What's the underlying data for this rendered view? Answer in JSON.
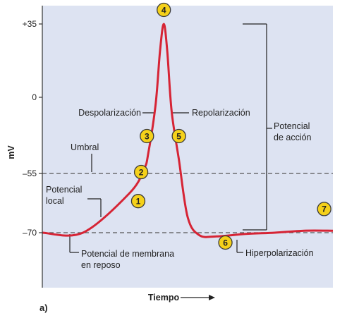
{
  "colors": {
    "plot_bg": "#dde3f2",
    "curve": "#d62435",
    "badge_fill": "#f5d11a",
    "badge_stroke": "#3a3a3a",
    "dashed": "#555555",
    "text": "#222222"
  },
  "chart_data": {
    "type": "line",
    "title": "",
    "panel_label": "a)",
    "ylabel": "mV",
    "xlabel": "Tiempo",
    "xlim": [
      0,
      100
    ],
    "ylim": [
      -90,
      40
    ],
    "y_ticks": [
      {
        "value": 35,
        "label": "+35"
      },
      {
        "value": 0,
        "label": "0"
      },
      {
        "value": -55,
        "label": "–55"
      },
      {
        "value": -70,
        "label": "–70"
      }
    ],
    "threshold_lines": [
      {
        "name": "umbral",
        "y": -55
      },
      {
        "name": "reposo",
        "y": -70
      }
    ],
    "series": [
      {
        "x": [
          0,
          14,
          30,
          35,
          36.5,
          39,
          40.5,
          41.8,
          43,
          44.5,
          47,
          50,
          54,
          60,
          70,
          80,
          90,
          100
        ],
        "y": [
          -70,
          -70,
          -60,
          -52,
          -40,
          -5,
          22,
          35,
          22,
          -10,
          -45,
          -66,
          -71,
          -71.5,
          -70.5,
          -70,
          -69.5,
          -69.5
        ]
      }
    ],
    "annotations": [
      {
        "text": "Despolarización",
        "x": 38,
        "y": -7
      },
      {
        "text": "Repolarización",
        "x": 45,
        "y": -7
      },
      {
        "text": "Umbral",
        "x": 15,
        "y": -55
      },
      {
        "text": "Potencial local",
        "x": 20,
        "y": -62
      },
      {
        "text": "Potencial de membrana en reposo",
        "x": 9,
        "y": -70
      },
      {
        "text": "Hiperpolarización",
        "x": 68,
        "y": -71
      },
      {
        "text": "Potencial de acción",
        "x": 77,
        "y": -16
      }
    ],
    "labels": {
      "despol": "Despolarización",
      "repol": "Repolarización",
      "umbral": "Umbral",
      "local1": "Potencial",
      "local2": "local",
      "reposo1": "Potencial de membrana",
      "reposo2": "en reposo",
      "hiper": "Hiperpolarización",
      "accion1": "Potencial",
      "accion2": "de acción"
    },
    "markers": [
      {
        "label": "1",
        "x": 33,
        "y": -62
      },
      {
        "label": "2",
        "x": 34,
        "y": -54
      },
      {
        "label": "3",
        "x": 36,
        "y": -28
      },
      {
        "label": "4",
        "x": 41.8,
        "y": 40
      },
      {
        "label": "5",
        "x": 47,
        "y": -28
      },
      {
        "label": "6",
        "x": 63,
        "y": -74
      },
      {
        "label": "7",
        "x": 97,
        "y": -64
      }
    ]
  }
}
